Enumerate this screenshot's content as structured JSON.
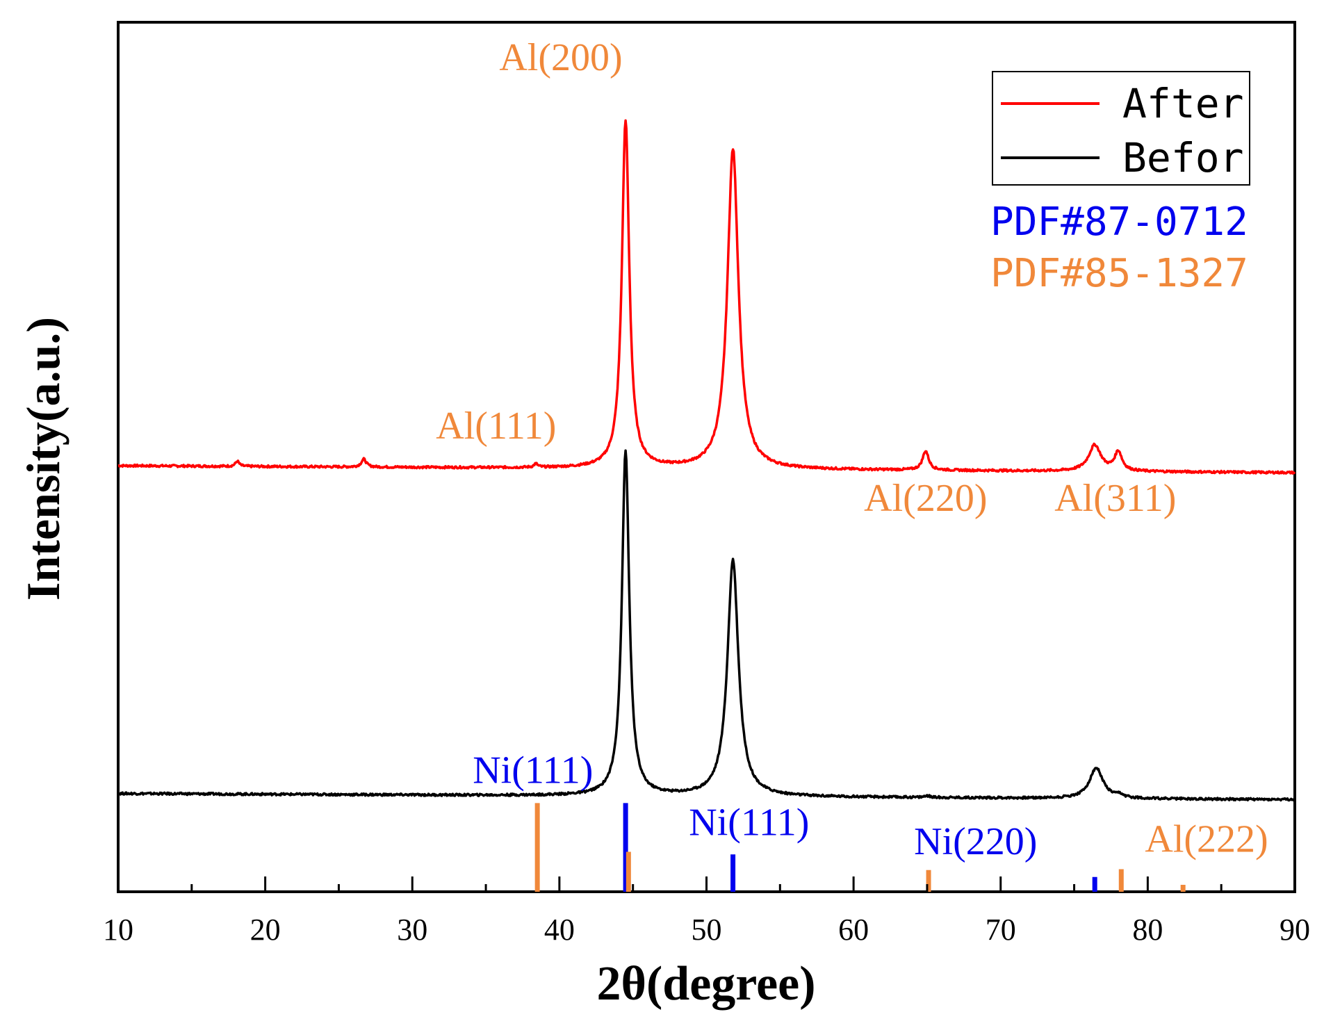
{
  "chart_data": {
    "type": "line",
    "xlabel": "2θ(degree)",
    "ylabel": "Intensity(a.u.)",
    "xlim": [
      10,
      90
    ],
    "x_ticks": [
      10,
      20,
      30,
      40,
      50,
      60,
      70,
      80,
      90
    ],
    "x_tick_labels": [
      "10",
      "20",
      "30",
      "40",
      "50",
      "60",
      "70",
      "80",
      "90"
    ],
    "x_minor_ticks": [
      15,
      25,
      35,
      45,
      55,
      65,
      75,
      85
    ],
    "ylim": [
      0,
      100
    ],
    "y_ticks_shown": false,
    "series": [
      {
        "name": "After",
        "color": "#ff0000",
        "baseline": [
          [
            10,
            49.0
          ],
          [
            90,
            48.2
          ]
        ],
        "peaks": [
          {
            "x": 18.1,
            "h": 0.6,
            "w": 0.15
          },
          {
            "x": 26.7,
            "h": 0.9,
            "w": 0.2
          },
          {
            "x": 38.4,
            "h": 0.4,
            "w": 0.15
          },
          {
            "x": 44.5,
            "h": 40.0,
            "w": 0.3
          },
          {
            "x": 51.8,
            "h": 36.8,
            "w": 0.45
          },
          {
            "x": 64.9,
            "h": 2.2,
            "w": 0.25
          },
          {
            "x": 76.4,
            "h": 3.0,
            "w": 0.5
          },
          {
            "x": 78.0,
            "h": 2.2,
            "w": 0.3
          }
        ]
      },
      {
        "name": "Befor",
        "color": "#000000",
        "baseline": [
          [
            10,
            11.3
          ],
          [
            90,
            10.6
          ]
        ],
        "peaks": [
          {
            "x": 44.5,
            "h": 39.6,
            "w": 0.3
          },
          {
            "x": 51.8,
            "h": 27.2,
            "w": 0.45
          },
          {
            "x": 65.0,
            "h": 0.2,
            "w": 0.2
          },
          {
            "x": 76.5,
            "h": 3.5,
            "w": 0.55
          },
          {
            "x": 78.1,
            "h": 0.3,
            "w": 0.25
          }
        ]
      }
    ],
    "reference_patterns": [
      {
        "name": "PDF#87-0712",
        "color": "#0000ee",
        "lines": [
          {
            "x": 44.5,
            "h": 10.2
          },
          {
            "x": 51.8,
            "h": 4.3
          },
          {
            "x": 76.4,
            "h": 1.7
          }
        ]
      },
      {
        "name": "PDF#85-1327",
        "color": "#f0883a",
        "lines": [
          {
            "x": 38.5,
            "h": 10.2
          },
          {
            "x": 44.7,
            "h": 4.6
          },
          {
            "x": 65.1,
            "h": 2.5
          },
          {
            "x": 78.2,
            "h": 2.6
          },
          {
            "x": 82.4,
            "h": 0.8
          }
        ]
      }
    ],
    "legend": {
      "position": "top-right",
      "entries": [
        {
          "label": "After",
          "color": "#ff0000"
        },
        {
          "label": "Befor",
          "color": "#000000"
        }
      ]
    },
    "reference_labels": [
      {
        "text": "PDF#87-0712",
        "color": "#0000ee"
      },
      {
        "text": "PDF#85-1327",
        "color": "#f0883a"
      }
    ],
    "annotations": [
      {
        "text": "Al(200)",
        "color": "#f0883a",
        "x": 40.1,
        "y": 94.5
      },
      {
        "text": "Al(111)",
        "color": "#f0883a",
        "x": 35.7,
        "y": 52.1
      },
      {
        "text": "Al(220)",
        "color": "#f0883a",
        "x": 64.9,
        "y": 43.8
      },
      {
        "text": "Al(311)",
        "color": "#f0883a",
        "x": 77.8,
        "y": 43.8
      },
      {
        "text": "Ni(111)",
        "color": "#0000ee",
        "x": 38.2,
        "y": 12.5
      },
      {
        "text": "Ni(111)",
        "color": "#0000ee",
        "x": 52.9,
        "y": 6.5
      },
      {
        "text": "Ni(220)",
        "color": "#0000ee",
        "x": 68.3,
        "y": 4.3
      },
      {
        "text": "Al(222)",
        "color": "#f0883a",
        "x": 84.0,
        "y": 4.6
      }
    ]
  }
}
